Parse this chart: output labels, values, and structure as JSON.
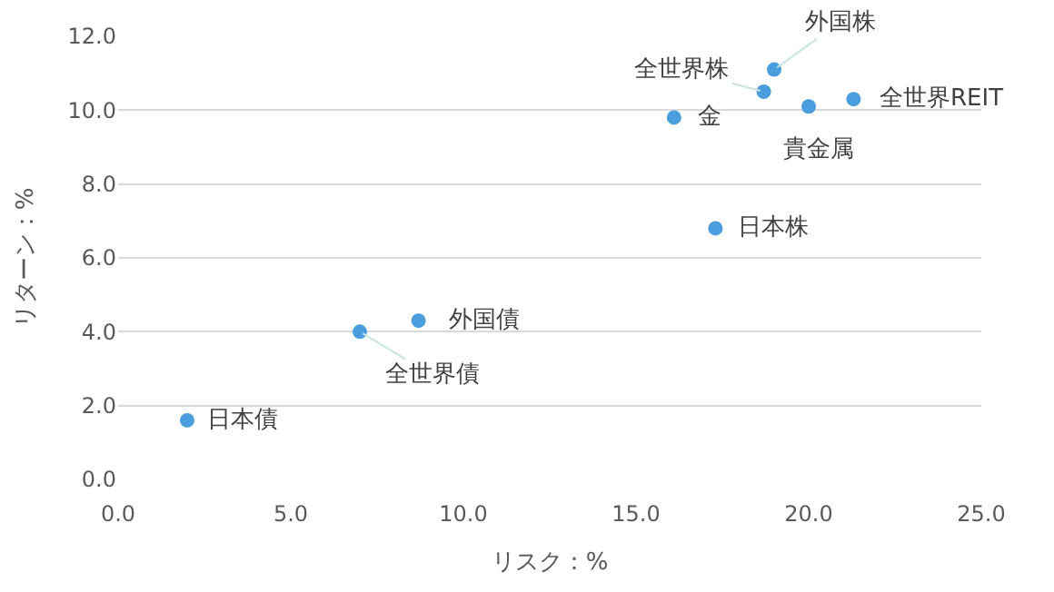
{
  "chart_data": {
    "type": "scatter",
    "xlabel": "リスク：%",
    "ylabel": "リターン：%",
    "x": [
      2.0,
      7.0,
      8.7,
      16.1,
      18.7,
      19.0,
      20.0,
      21.3,
      17.3
    ],
    "values": [
      1.6,
      4.0,
      4.3,
      9.8,
      10.5,
      11.1,
      10.1,
      10.3,
      6.8
    ],
    "color": "#4a9ede",
    "marker": "circle",
    "grid": "y",
    "xlim": [
      0,
      25
    ],
    "xticks": [
      {
        "value": 0,
        "label": "0.0"
      },
      {
        "value": 5,
        "label": "5.0"
      },
      {
        "value": 10,
        "label": "10.0"
      },
      {
        "value": 15,
        "label": "15.0"
      },
      {
        "value": 20,
        "label": "20.0"
      },
      {
        "value": 25,
        "label": "25.0"
      }
    ],
    "ylim": [
      0,
      12
    ],
    "yticks": [
      {
        "value": 0,
        "label": "0.0"
      },
      {
        "value": 2,
        "label": "2.0"
      },
      {
        "value": 4,
        "label": "4.0"
      },
      {
        "value": 6,
        "label": "6.0"
      },
      {
        "value": 8,
        "label": "8.0"
      },
      {
        "value": 10,
        "label": "10.0"
      },
      {
        "value": 12,
        "label": "12.0"
      }
    ],
    "annotations": [
      {
        "text": "日本債",
        "x": 2.0,
        "y": 1.6
      },
      {
        "text": "全世界債",
        "x": 7.0,
        "y": 4.0
      },
      {
        "text": "外国債",
        "x": 8.7,
        "y": 4.3
      },
      {
        "text": "金",
        "x": 16.1,
        "y": 9.8
      },
      {
        "text": "全世界株",
        "x": 18.7,
        "y": 10.5
      },
      {
        "text": "外国株",
        "x": 19.0,
        "y": 11.1
      },
      {
        "text": "貴金属",
        "x": 20.0,
        "y": 10.1
      },
      {
        "text": "全世界REIT",
        "x": 21.3,
        "y": 10.3
      },
      {
        "text": "日本株",
        "x": 17.3,
        "y": 6.8
      }
    ]
  }
}
